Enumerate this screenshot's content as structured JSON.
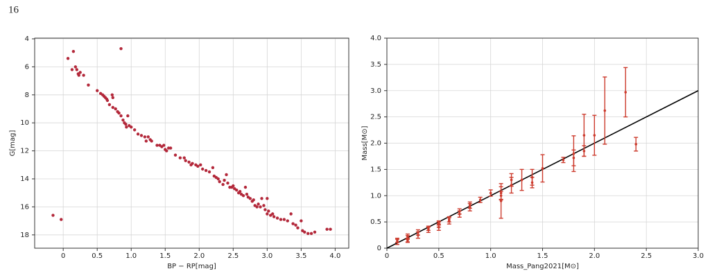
{
  "page_number": "16",
  "chart_data": [
    {
      "type": "scatter",
      "xlabel": "BP − RP[mag]",
      "ylabel": "G[mag]",
      "color": "#b3283a",
      "grid": true,
      "xlim": [
        -0.42,
        4.2
      ],
      "ylim": [
        3.95,
        18.95
      ],
      "y_inverted": true,
      "xticks": [
        0,
        0.5,
        {
          "value": 1,
          "label": "1.0"
        },
        1.5,
        {
          "value": 2,
          "label": "2.0"
        },
        2.5,
        {
          "value": 3,
          "label": "3.0"
        },
        3.5,
        {
          "value": 4,
          "label": "4.0"
        }
      ],
      "yticks": [
        4,
        6,
        8,
        10,
        12,
        14,
        16,
        18
      ],
      "x": [
        -0.15,
        -0.03,
        0.07,
        0.15,
        0.13,
        0.18,
        0.2,
        0.22,
        0.25,
        0.23,
        0.3,
        0.37,
        0.5,
        0.55,
        0.58,
        0.6,
        0.62,
        0.64,
        0.65,
        0.68,
        0.72,
        0.73,
        0.73,
        0.77,
        0.8,
        0.82,
        0.85,
        0.85,
        0.88,
        0.9,
        0.92,
        0.93,
        0.95,
        0.97,
        1.0,
        1.05,
        1.1,
        1.15,
        1.2,
        1.22,
        1.25,
        1.28,
        1.3,
        1.38,
        1.42,
        1.45,
        1.48,
        1.5,
        1.52,
        1.55,
        1.58,
        1.65,
        1.72,
        1.78,
        1.8,
        1.85,
        1.88,
        1.9,
        1.95,
        1.98,
        2.02,
        2.05,
        2.1,
        2.15,
        2.2,
        2.22,
        2.25,
        2.28,
        2.3,
        2.35,
        2.37,
        2.4,
        2.42,
        2.45,
        2.48,
        2.5,
        2.52,
        2.55,
        2.58,
        2.6,
        2.62,
        2.65,
        2.68,
        2.7,
        2.72,
        2.75,
        2.78,
        2.8,
        2.82,
        2.85,
        2.87,
        2.9,
        2.92,
        2.95,
        2.97,
        3.0,
        3.0,
        3.02,
        3.05,
        3.08,
        3.1,
        3.15,
        3.2,
        3.25,
        3.3,
        3.35,
        3.38,
        3.42,
        3.45,
        3.5,
        3.52,
        3.55,
        3.6,
        3.65,
        3.7,
        3.88,
        3.93
      ],
      "values": [
        16.6,
        16.9,
        5.4,
        4.9,
        6.2,
        6.0,
        6.2,
        6.5,
        6.4,
        6.6,
        6.6,
        7.3,
        7.7,
        7.9,
        8.0,
        8.1,
        8.2,
        8.3,
        8.4,
        8.7,
        8.0,
        8.2,
        8.9,
        9.0,
        9.2,
        9.3,
        4.7,
        9.5,
        9.8,
        10.0,
        10.1,
        10.3,
        9.5,
        10.2,
        10.3,
        10.5,
        10.8,
        10.9,
        11.0,
        11.3,
        11.0,
        11.2,
        11.3,
        11.6,
        11.6,
        11.7,
        11.6,
        11.9,
        12.0,
        11.8,
        11.8,
        12.3,
        12.5,
        12.5,
        12.7,
        12.8,
        13.0,
        12.9,
        13.0,
        13.1,
        13.0,
        13.3,
        13.4,
        13.5,
        13.2,
        13.8,
        13.9,
        14.0,
        14.2,
        14.4,
        14.1,
        13.7,
        14.3,
        14.6,
        14.6,
        14.5,
        14.7,
        14.8,
        15.0,
        14.9,
        15.1,
        15.2,
        14.6,
        15.1,
        15.3,
        15.4,
        15.6,
        15.5,
        15.9,
        16.0,
        15.8,
        16.0,
        15.4,
        15.9,
        16.2,
        15.4,
        16.5,
        16.3,
        16.6,
        16.5,
        16.7,
        16.8,
        16.9,
        16.9,
        17.0,
        16.5,
        17.2,
        17.3,
        17.5,
        17.0,
        17.7,
        17.8,
        17.9,
        17.9,
        17.8,
        17.6,
        17.6
      ]
    },
    {
      "type": "scatter",
      "xlabel": "Mass_Pang2021[M⊙]",
      "ylabel": "Mass[M⊙]",
      "color": "#cc3a2c",
      "grid": true,
      "xlim": [
        0,
        3
      ],
      "ylim": [
        0,
        4
      ],
      "xticks": [
        0,
        0.5,
        {
          "value": 1,
          "label": "1.0"
        },
        1.5,
        {
          "value": 2,
          "label": "2.0"
        },
        2.5,
        {
          "value": 3,
          "label": "3.0"
        }
      ],
      "yticks": [
        0,
        0.5,
        {
          "value": 1,
          "label": "1.0"
        },
        1.5,
        {
          "value": 2,
          "label": "2.0"
        },
        2.5,
        {
          "value": 3,
          "label": "3.0"
        },
        3.5,
        {
          "value": 4,
          "label": "4.0"
        }
      ],
      "x": [
        0.1,
        0.1,
        0.2,
        0.2,
        0.2,
        0.3,
        0.3,
        0.4,
        0.4,
        0.5,
        0.5,
        0.5,
        0.6,
        0.6,
        0.7,
        0.7,
        0.8,
        0.8,
        0.9,
        1.0,
        1.1,
        1.1,
        1.1,
        1.2,
        1.2,
        1.3,
        1.4,
        1.4,
        1.5,
        1.7,
        1.8,
        1.8,
        1.9,
        1.9,
        2.0,
        2.1,
        2.3,
        2.4
      ],
      "values": [
        0.12,
        0.15,
        0.18,
        0.22,
        0.15,
        0.25,
        0.3,
        0.35,
        0.38,
        0.4,
        0.45,
        0.48,
        0.52,
        0.55,
        0.65,
        0.7,
        0.78,
        0.82,
        0.92,
        1.05,
        0.9,
        1.05,
        1.0,
        1.2,
        1.3,
        1.3,
        1.25,
        1.35,
        1.52,
        1.68,
        1.8,
        1.72,
        1.85,
        2.15,
        2.15,
        2.62,
        2.97,
        1.98
      ],
      "errors": [
        0.05,
        0.04,
        0.06,
        0.05,
        0.04,
        0.06,
        0.05,
        0.05,
        0.04,
        0.06,
        0.05,
        0.04,
        0.06,
        0.05,
        0.06,
        0.05,
        0.07,
        0.06,
        0.05,
        0.06,
        0.33,
        0.12,
        0.08,
        0.15,
        0.12,
        0.2,
        0.1,
        0.15,
        0.26,
        0.05,
        0.34,
        0.15,
        0.1,
        0.4,
        0.38,
        0.64,
        0.47,
        0.13
      ],
      "reference_line": {
        "x": [
          0,
          3
        ],
        "y": [
          0,
          3
        ],
        "color": "#000000"
      }
    }
  ]
}
